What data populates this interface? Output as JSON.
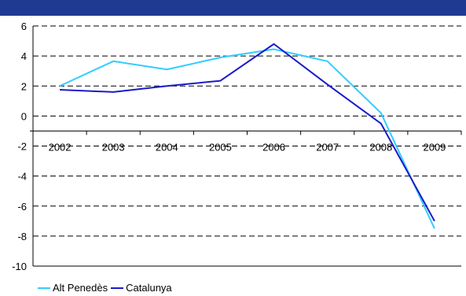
{
  "chart_data": {
    "type": "line",
    "categories": [
      "2002",
      "2003",
      "2004",
      "2005",
      "2006",
      "2007",
      "2008",
      "2009"
    ],
    "series": [
      {
        "name": "Alt Penedès",
        "values": [
          2.0,
          3.65,
          3.1,
          3.9,
          4.45,
          3.65,
          0.2,
          -7.5
        ],
        "color": "#33ccff"
      },
      {
        "name": "Catalunya",
        "values": [
          1.75,
          1.6,
          2.0,
          2.35,
          4.8,
          2.1,
          -0.5,
          -7.0
        ],
        "color": "#1a1acc"
      }
    ],
    "ylim": [
      -10,
      6
    ],
    "yticks": [
      "6",
      "4",
      "2",
      "0",
      "-2",
      "-4",
      "-6",
      "-8",
      "-10"
    ],
    "grid": true,
    "legend_position": "bottom-left",
    "title": "",
    "xlabel": "",
    "ylabel": ""
  },
  "colors": {
    "top_band": "#1f3a93",
    "grid": "#000000"
  }
}
